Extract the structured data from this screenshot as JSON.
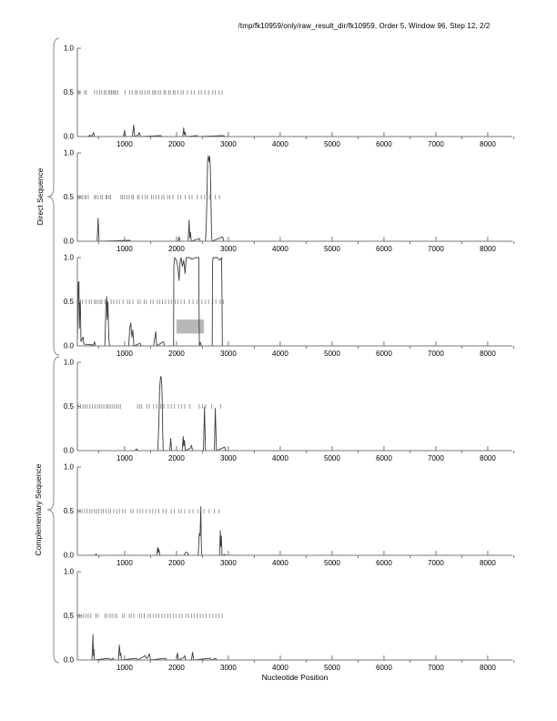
{
  "title": "/tmp/fk10959/only/raw_result_dir/fk10959, Order 5, Window 96, Step 12, 2/2",
  "x_axis_label": "Nucleotide Position",
  "group_labels": {
    "direct": "Direct Sequence",
    "complementary": "Complementary Sequence"
  },
  "colors": {
    "curve": "#3c3c3c",
    "tick_row": "#9a9a9a",
    "axis": "#777777",
    "annotation": "#b8b8b8",
    "text": "#000000"
  },
  "axis": {
    "x_min": 90,
    "x_max": 8475,
    "x_major_ticks": [
      1000,
      2000,
      3000,
      4000,
      5000,
      6000,
      7000,
      8000
    ],
    "x_minor_ticks": [
      500,
      1500,
      2500,
      3500,
      4500,
      5500,
      6500,
      7500,
      8500
    ],
    "y_min": 0,
    "y_max": 1,
    "y_tick_values": [
      0,
      0.5,
      1
    ],
    "y_tick_labels": [
      "0.0",
      "0.5",
      "1.0"
    ]
  },
  "chart_data": [
    {
      "id": "direct-frame-1",
      "type": "line",
      "group": "Direct Sequence",
      "ylim": [
        0,
        1
      ],
      "curve": [
        [
          90,
          0
        ],
        [
          300,
          0
        ],
        [
          330,
          0.015
        ],
        [
          360,
          0
        ],
        [
          390,
          0.03
        ],
        [
          405,
          0.045
        ],
        [
          420,
          0
        ],
        [
          980,
          0
        ],
        [
          1000,
          0.07
        ],
        [
          1020,
          0
        ],
        [
          1150,
          0
        ],
        [
          1175,
          0.13
        ],
        [
          1195,
          0
        ],
        [
          1265,
          0.02
        ],
        [
          1285,
          0.045
        ],
        [
          1305,
          0
        ],
        [
          1700,
          0.01
        ],
        [
          1720,
          0
        ],
        [
          2120,
          0
        ],
        [
          2140,
          0.1
        ],
        [
          2150,
          0.02
        ],
        [
          2165,
          0.05
        ],
        [
          2185,
          0
        ],
        [
          2400,
          0.01
        ],
        [
          2420,
          0
        ],
        [
          2900,
          0.01
        ],
        [
          2950,
          0
        ]
      ],
      "half_ticks": [
        110,
        140,
        230,
        260,
        420,
        470,
        520,
        560,
        610,
        640,
        690,
        720,
        750,
        780,
        810,
        830,
        870,
        1010,
        1100,
        1150,
        1210,
        1240,
        1300,
        1340,
        1390,
        1440,
        1480,
        1540,
        1570,
        1600,
        1650,
        1690,
        1760,
        1790,
        1850,
        1880,
        1940,
        1970,
        2030,
        2090,
        2130,
        2210,
        2290,
        2340,
        2430,
        2480,
        2550,
        2620,
        2700,
        2750,
        2820,
        2880
      ],
      "annotations": []
    },
    {
      "id": "direct-frame-2",
      "type": "line",
      "group": "Direct Sequence",
      "ylim": [
        0,
        1
      ],
      "curve": [
        [
          90,
          0
        ],
        [
          470,
          0
        ],
        [
          490,
          0.26
        ],
        [
          510,
          0
        ],
        [
          1100,
          0.01
        ],
        [
          1120,
          0
        ],
        [
          2030,
          0
        ],
        [
          2050,
          0.05
        ],
        [
          2070,
          0
        ],
        [
          2225,
          0
        ],
        [
          2245,
          0.24
        ],
        [
          2258,
          0.04
        ],
        [
          2270,
          0.1
        ],
        [
          2285,
          0
        ],
        [
          2440,
          0.03
        ],
        [
          2460,
          0
        ],
        [
          2560,
          0
        ],
        [
          2575,
          0.2
        ],
        [
          2590,
          0.55
        ],
        [
          2600,
          0.9
        ],
        [
          2615,
          0.97
        ],
        [
          2630,
          0.9
        ],
        [
          2640,
          0.96
        ],
        [
          2655,
          0.8
        ],
        [
          2665,
          0.45
        ],
        [
          2675,
          0.1
        ],
        [
          2685,
          0
        ],
        [
          2890,
          0.05
        ],
        [
          2910,
          0
        ],
        [
          2950,
          0
        ]
      ],
      "half_ticks": [
        100,
        130,
        160,
        190,
        230,
        260,
        300,
        420,
        450,
        490,
        540,
        570,
        640,
        660,
        700,
        730,
        930,
        960,
        1000,
        1050,
        1090,
        1140,
        1170,
        1250,
        1280,
        1340,
        1400,
        1440,
        1520,
        1560,
        1610,
        1660,
        1720,
        1760,
        1830,
        1870,
        1930,
        2030,
        2080,
        2170,
        2250,
        2300,
        2400,
        2480,
        2540,
        2640,
        2750,
        2830
      ],
      "annotations": []
    },
    {
      "id": "direct-frame-3",
      "type": "line",
      "group": "Direct Sequence",
      "ylim": [
        0,
        1
      ],
      "curve": [
        [
          90,
          0.02
        ],
        [
          100,
          0.3
        ],
        [
          110,
          0.72
        ],
        [
          120,
          0.73
        ],
        [
          130,
          0.2
        ],
        [
          140,
          0.5
        ],
        [
          150,
          0.45
        ],
        [
          160,
          0.05
        ],
        [
          200,
          0.1
        ],
        [
          215,
          0.02
        ],
        [
          400,
          0.01
        ],
        [
          420,
          0.05
        ],
        [
          440,
          0
        ],
        [
          620,
          0
        ],
        [
          640,
          0.45
        ],
        [
          655,
          0.56
        ],
        [
          665,
          0.3
        ],
        [
          680,
          0.5
        ],
        [
          695,
          0.1
        ],
        [
          710,
          0
        ],
        [
          1080,
          0
        ],
        [
          1100,
          0.2
        ],
        [
          1120,
          0.26
        ],
        [
          1140,
          0.1
        ],
        [
          1160,
          0.18
        ],
        [
          1180,
          0
        ],
        [
          1300,
          0.03
        ],
        [
          1320,
          0
        ],
        [
          1560,
          0
        ],
        [
          1580,
          0.08
        ],
        [
          1600,
          0.16
        ],
        [
          1620,
          0
        ],
        [
          1750,
          0.05
        ],
        [
          1770,
          0
        ],
        [
          1945,
          0
        ],
        [
          1950,
          0.9
        ],
        [
          1965,
          1.0
        ],
        [
          2000,
          0.97
        ],
        [
          2030,
          0.88
        ],
        [
          2050,
          0.74
        ],
        [
          2070,
          0.95
        ],
        [
          2090,
          1.0
        ],
        [
          2115,
          0.9
        ],
        [
          2140,
          0.97
        ],
        [
          2165,
          0.82
        ],
        [
          2190,
          1.0
        ],
        [
          2260,
          1.0
        ],
        [
          2300,
          0.98
        ],
        [
          2360,
          1.0
        ],
        [
          2430,
          1.0
        ],
        [
          2435,
          0.5
        ],
        [
          2440,
          0
        ],
        [
          2460,
          0.04
        ],
        [
          2480,
          0
        ],
        [
          2690,
          0
        ],
        [
          2695,
          0.93
        ],
        [
          2705,
          1.0
        ],
        [
          2790,
          1.0
        ],
        [
          2830,
          0.97
        ],
        [
          2870,
          1.0
        ],
        [
          2880,
          0.5
        ],
        [
          2885,
          0
        ],
        [
          2950,
          0
        ]
      ],
      "half_ticks": [
        100,
        150,
        190,
        260,
        320,
        360,
        420,
        450,
        490,
        530,
        560,
        620,
        660,
        740,
        790,
        850,
        900,
        970,
        1060,
        1100,
        1160,
        1260,
        1300,
        1380,
        1420,
        1500,
        1550,
        1630,
        1680,
        1730,
        1790,
        1850,
        1900,
        1980,
        2030,
        2090,
        2150,
        2250,
        2320,
        2400,
        2490,
        2560,
        2620,
        2700,
        2760,
        2840,
        2900
      ],
      "annotations": [
        {
          "type": "rect",
          "x0": 2000,
          "x1": 2530,
          "y0": 0.14,
          "y1": 0.3
        }
      ]
    },
    {
      "id": "complementary-frame-1",
      "type": "line",
      "group": "Complementary Sequence",
      "ylim": [
        0,
        1
      ],
      "curve": [
        [
          90,
          0
        ],
        [
          1200,
          0
        ],
        [
          1230,
          0.02
        ],
        [
          1260,
          0
        ],
        [
          1640,
          0
        ],
        [
          1660,
          0.3
        ],
        [
          1675,
          0.7
        ],
        [
          1690,
          0.82
        ],
        [
          1700,
          0.84
        ],
        [
          1715,
          0.78
        ],
        [
          1725,
          0.6
        ],
        [
          1735,
          0.2
        ],
        [
          1745,
          0
        ],
        [
          1870,
          0
        ],
        [
          1890,
          0.14
        ],
        [
          1905,
          0
        ],
        [
          2110,
          0
        ],
        [
          2130,
          0.16
        ],
        [
          2140,
          0.05
        ],
        [
          2155,
          0.12
        ],
        [
          2170,
          0
        ],
        [
          2270,
          0.03
        ],
        [
          2290,
          0.06
        ],
        [
          2310,
          0
        ],
        [
          2520,
          0
        ],
        [
          2540,
          0.49
        ],
        [
          2560,
          0
        ],
        [
          2730,
          0
        ],
        [
          2750,
          0.48
        ],
        [
          2770,
          0
        ],
        [
          2930,
          0.04
        ],
        [
          2950,
          0
        ]
      ],
      "half_ticks": [
        110,
        150,
        200,
        240,
        280,
        330,
        380,
        430,
        480,
        520,
        560,
        600,
        650,
        680,
        720,
        760,
        800,
        840,
        880,
        920,
        1250,
        1290,
        1330,
        1430,
        1480,
        1560,
        1620,
        1700,
        1760,
        1840,
        1900,
        1960,
        2040,
        2100,
        2160,
        2260,
        2440,
        2500,
        2560,
        2680,
        2850
      ],
      "annotations": []
    },
    {
      "id": "complementary-frame-2",
      "type": "line",
      "group": "Complementary Sequence",
      "ylim": [
        0,
        1
      ],
      "curve": [
        [
          90,
          0
        ],
        [
          430,
          0
        ],
        [
          450,
          0.015
        ],
        [
          470,
          0
        ],
        [
          1620,
          0
        ],
        [
          1640,
          0.09
        ],
        [
          1650,
          0.03
        ],
        [
          1660,
          0.07
        ],
        [
          1680,
          0
        ],
        [
          2150,
          0
        ],
        [
          2180,
          0.035
        ],
        [
          2210,
          0.03
        ],
        [
          2240,
          0
        ],
        [
          2420,
          0
        ],
        [
          2440,
          0.25
        ],
        [
          2455,
          0.22
        ],
        [
          2470,
          0.55
        ],
        [
          2480,
          0.1
        ],
        [
          2490,
          0
        ],
        [
          2830,
          0
        ],
        [
          2845,
          0.28
        ],
        [
          2855,
          0.1
        ],
        [
          2865,
          0.22
        ],
        [
          2880,
          0
        ],
        [
          2940,
          0.01
        ],
        [
          2950,
          0
        ]
      ],
      "half_ticks": [
        100,
        140,
        180,
        230,
        280,
        330,
        370,
        420,
        460,
        500,
        550,
        590,
        640,
        690,
        730,
        790,
        850,
        900,
        960,
        1010,
        1120,
        1160,
        1250,
        1300,
        1350,
        1420,
        1490,
        1540,
        1600,
        1660,
        1740,
        1800,
        1900,
        1960,
        2040,
        2090,
        2160,
        2250,
        2320,
        2420,
        2530,
        2630,
        2730,
        2820
      ],
      "annotations": []
    },
    {
      "id": "complementary-frame-3",
      "type": "line",
      "group": "Complementary Sequence",
      "ylim": [
        0,
        1
      ],
      "curve": [
        [
          90,
          0
        ],
        [
          370,
          0
        ],
        [
          380,
          0.1
        ],
        [
          390,
          0.29
        ],
        [
          400,
          0.05
        ],
        [
          410,
          0.12
        ],
        [
          420,
          0
        ],
        [
          700,
          0.02
        ],
        [
          720,
          0
        ],
        [
          780,
          0.02
        ],
        [
          800,
          0
        ],
        [
          880,
          0
        ],
        [
          900,
          0.17
        ],
        [
          915,
          0.05
        ],
        [
          925,
          0.08
        ],
        [
          940,
          0
        ],
        [
          1230,
          0.02
        ],
        [
          1250,
          0
        ],
        [
          1400,
          0.05
        ],
        [
          1420,
          0.02
        ],
        [
          1450,
          0.03
        ],
        [
          1480,
          0.07
        ],
        [
          1500,
          0
        ],
        [
          1790,
          0.02
        ],
        [
          1810,
          0
        ],
        [
          2000,
          0
        ],
        [
          2020,
          0.08
        ],
        [
          2040,
          0
        ],
        [
          2140,
          0.03
        ],
        [
          2160,
          0.05
        ],
        [
          2180,
          0
        ],
        [
          2290,
          0
        ],
        [
          2310,
          0.09
        ],
        [
          2330,
          0
        ],
        [
          2650,
          0.02
        ],
        [
          2680,
          0
        ],
        [
          2750,
          0.02
        ],
        [
          2780,
          0
        ],
        [
          2950,
          0
        ]
      ],
      "half_ticks": [
        100,
        130,
        170,
        210,
        260,
        300,
        350,
        450,
        490,
        620,
        660,
        720,
        760,
        810,
        850,
        960,
        1000,
        1090,
        1130,
        1180,
        1290,
        1330,
        1380,
        1460,
        1500,
        1560,
        1610,
        1660,
        1720,
        1770,
        1830,
        1880,
        1940,
        1990,
        2060,
        2110,
        2180,
        2230,
        2290,
        2340,
        2400,
        2460,
        2510,
        2570,
        2640,
        2700,
        2760,
        2820,
        2880
      ],
      "annotations": []
    }
  ],
  "layout_note_panel_tops": [
    47,
    162,
    277,
    392,
    507,
    622
  ]
}
